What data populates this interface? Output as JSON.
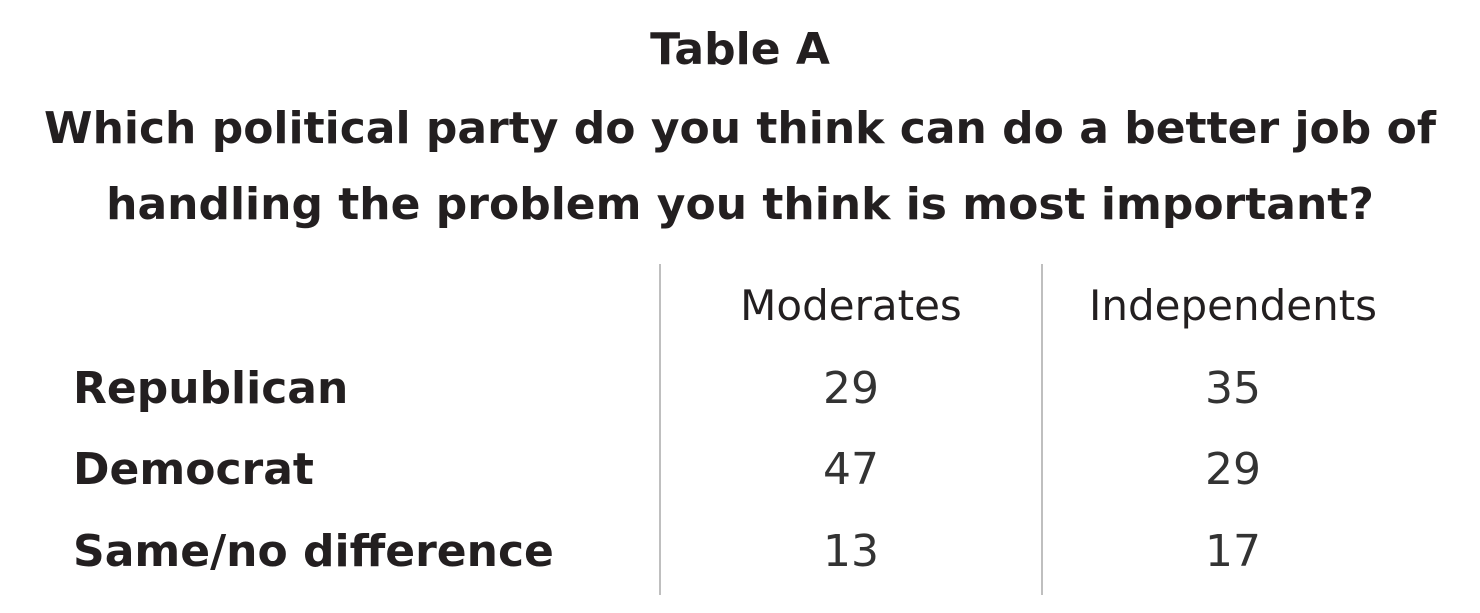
{
  "table": {
    "title": "Table A",
    "question_lines": [
      "Which political party do you think can do a better job of",
      "handling the problem you think is most important?"
    ],
    "columns": [
      "Moderates",
      "Independents"
    ],
    "rows": [
      {
        "label": "Republican",
        "values": [
          "29",
          "35"
        ]
      },
      {
        "label": "Democrat",
        "values": [
          "47",
          "29"
        ]
      },
      {
        "label": "Same/no difference",
        "values": [
          "13",
          "17"
        ]
      }
    ]
  }
}
